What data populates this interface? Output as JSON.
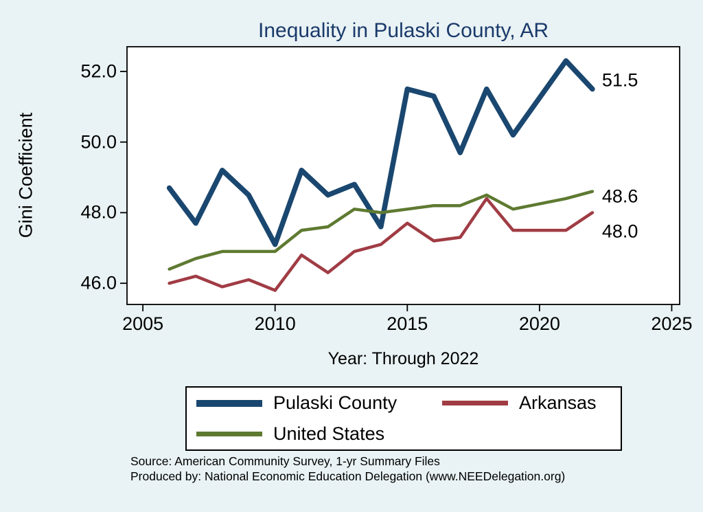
{
  "chart_data": {
    "type": "line",
    "title": "Inequality in Pulaski County, AR",
    "xlabel": "Year: Through 2022",
    "ylabel": "Gini Coefficient",
    "xlim": [
      2004.4,
      2025.3
    ],
    "ylim": [
      45.4,
      52.7
    ],
    "xticks": [
      2005,
      2010,
      2015,
      2020,
      2025
    ],
    "xtick_labels": [
      "2005",
      "2010",
      "2015",
      "2020",
      "2025"
    ],
    "yticks": [
      46,
      48,
      50,
      52
    ],
    "ytick_labels": [
      "46.0",
      "48.0",
      "50.0",
      "52.0"
    ],
    "grid": false,
    "legend_position": "bottom",
    "x": [
      2006,
      2007,
      2008,
      2009,
      2010,
      2011,
      2012,
      2013,
      2014,
      2015,
      2016,
      2017,
      2018,
      2019,
      2021,
      2022
    ],
    "series": [
      {
        "name": "Pulaski County",
        "color": "#1A476F",
        "line_width": 7.5,
        "end_label": "51.5",
        "values": [
          48.7,
          47.7,
          49.2,
          48.5,
          47.1,
          49.2,
          48.5,
          48.8,
          47.6,
          51.5,
          51.3,
          49.7,
          51.5,
          50.2,
          52.3,
          51.5
        ]
      },
      {
        "name": "Arkansas",
        "color": "#A03C44",
        "line_width": 4.5,
        "end_label": "48.0",
        "values": [
          46.0,
          46.2,
          45.9,
          46.1,
          45.8,
          46.8,
          46.3,
          46.9,
          47.1,
          47.7,
          47.2,
          47.3,
          48.4,
          47.5,
          47.5,
          48.0
        ]
      },
      {
        "name": "United States",
        "color": "#5E7A31",
        "line_width": 4.5,
        "end_label": "48.6",
        "values": [
          46.4,
          46.7,
          46.9,
          46.9,
          46.9,
          47.5,
          47.6,
          48.1,
          48.0,
          48.1,
          48.2,
          48.2,
          48.5,
          48.1,
          48.4,
          48.6
        ]
      }
    ]
  },
  "notes": {
    "source": "Source: American Community Survey, 1-yr Summary Files",
    "produced_by": "Produced by: National Economic Education Delegation (www.NEEDelegation.org)"
  },
  "colors": {
    "background": "#E9F2F4",
    "plot_background": "#FFFFFF",
    "title": "#1A3A6B",
    "axis": "#000000",
    "legend_border": "#000000"
  }
}
